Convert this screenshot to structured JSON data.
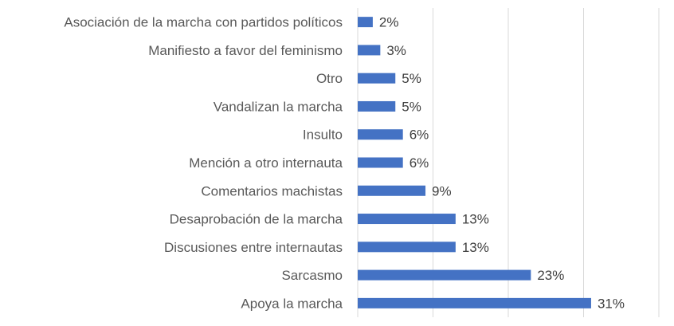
{
  "chart_data": {
    "type": "bar",
    "orientation": "horizontal",
    "title": "",
    "xlabel": "",
    "ylabel": "",
    "xlim": [
      0,
      40
    ],
    "grid": true,
    "bar_color": "#4472c4",
    "categories": [
      "Asociación de la marcha con partidos políticos",
      "Manifiesto a favor del feminismo",
      "Otro",
      "Vandalizan la marcha",
      "Insulto",
      "Mención a otro internauta",
      "Comentarios machistas",
      "Desaprobación de la marcha",
      "Discusiones entre internautas",
      "Sarcasmo",
      "Apoya la marcha"
    ],
    "values": [
      2,
      3,
      5,
      5,
      6,
      6,
      9,
      13,
      13,
      23,
      31
    ],
    "value_labels": [
      "2%",
      "3%",
      "5%",
      "5%",
      "6%",
      "6%",
      "9%",
      "13%",
      "13%",
      "23%",
      "31%"
    ]
  }
}
